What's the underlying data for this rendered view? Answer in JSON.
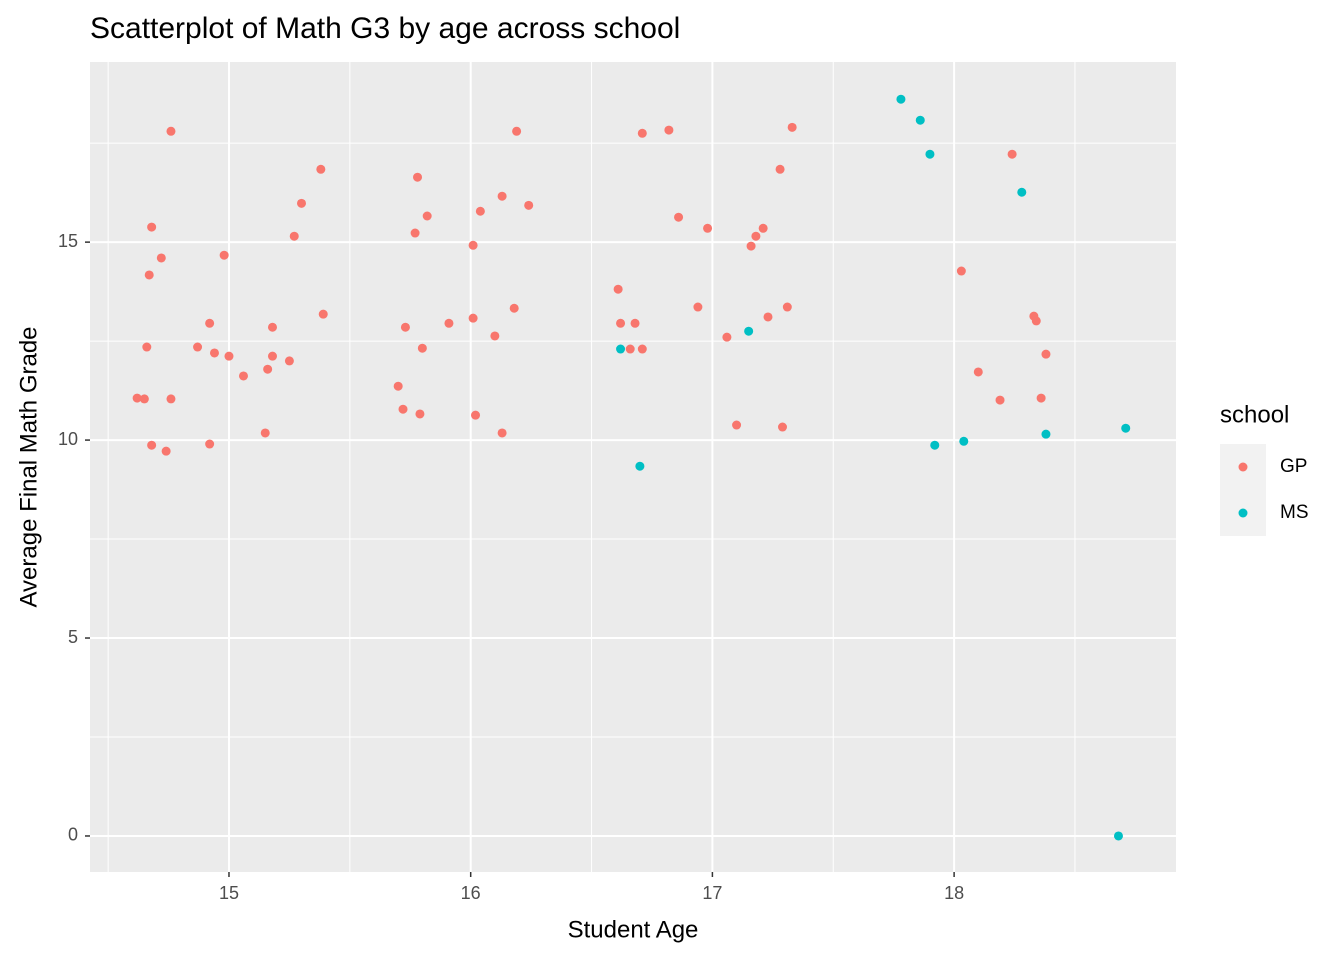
{
  "chart_data": {
    "type": "scatter",
    "title": "Scatterplot of Math G3 by age across school",
    "x_label": "Student Age",
    "y_label": "Average Final Math Grade",
    "legend_title": "school",
    "legend_position": "right",
    "grid": true,
    "minor_grid": true,
    "xlim": [
      14.425,
      18.918
    ],
    "ylim": [
      -0.91,
      19.55
    ],
    "xticks": [
      15,
      16,
      17,
      18
    ],
    "yticks": [
      0,
      5,
      10,
      15
    ],
    "series": [
      {
        "name": "GP",
        "color": "#F8766D",
        "x": [
          14.62,
          14.65,
          14.76,
          14.68,
          14.72,
          14.67,
          14.66,
          14.68,
          14.74,
          14.76,
          14.87,
          14.92,
          14.94,
          14.98,
          15.0,
          14.92,
          15.06,
          15.16,
          15.18,
          15.18,
          15.25,
          15.15,
          15.27,
          15.3,
          15.38,
          15.39,
          15.7,
          15.72,
          15.73,
          15.78,
          15.77,
          15.82,
          15.8,
          15.79,
          15.91,
          16.01,
          16.01,
          16.04,
          16.02,
          16.1,
          16.13,
          16.13,
          16.19,
          16.18,
          16.24,
          16.61,
          16.62,
          16.66,
          16.68,
          16.71,
          16.71,
          16.82,
          16.86,
          16.98,
          16.94,
          17.06,
          17.1,
          17.16,
          17.18,
          17.21,
          17.23,
          17.28,
          17.33,
          17.31,
          17.29,
          18.03,
          18.1,
          18.19,
          18.24,
          18.33,
          18.34,
          18.36,
          18.38
        ],
        "values": [
          11.06,
          11.04,
          17.8,
          15.38,
          14.6,
          14.17,
          12.35,
          9.87,
          9.72,
          11.04,
          12.35,
          12.95,
          12.2,
          14.67,
          12.12,
          9.9,
          11.62,
          11.79,
          12.85,
          12.12,
          12.0,
          10.18,
          15.15,
          15.98,
          16.84,
          13.18,
          11.36,
          10.78,
          12.85,
          16.64,
          15.23,
          15.66,
          12.32,
          10.66,
          12.95,
          14.92,
          13.08,
          15.78,
          10.63,
          12.63,
          16.16,
          10.18,
          17.8,
          13.33,
          15.93,
          13.81,
          12.95,
          12.3,
          12.95,
          12.3,
          17.75,
          17.83,
          15.63,
          15.35,
          13.36,
          12.6,
          10.38,
          14.9,
          15.15,
          15.35,
          13.11,
          16.84,
          17.9,
          13.36,
          10.33,
          14.27,
          11.72,
          11.01,
          17.22,
          13.13,
          13.01,
          11.06,
          12.17
        ]
      },
      {
        "name": "MS",
        "color": "#00BFC4",
        "x": [
          16.62,
          16.7,
          17.15,
          17.78,
          17.86,
          17.9,
          17.92,
          18.04,
          18.28,
          18.38,
          18.71,
          18.68
        ],
        "values": [
          12.3,
          9.34,
          12.75,
          18.61,
          18.08,
          17.22,
          9.87,
          9.97,
          16.26,
          10.15,
          10.3,
          0
        ]
      }
    ]
  }
}
